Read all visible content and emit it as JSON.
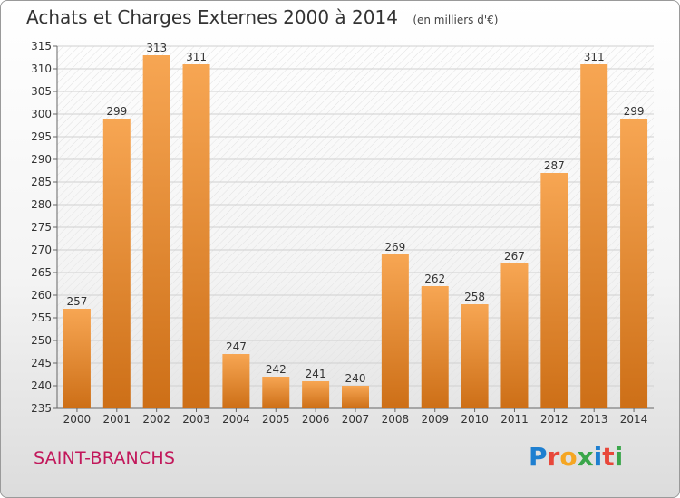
{
  "chart_data": {
    "type": "bar",
    "title": "Achats et Charges Externes 2000 à 2014",
    "subtitle": "(en milliers d'€)",
    "categories": [
      "2000",
      "2001",
      "2002",
      "2003",
      "2004",
      "2005",
      "2006",
      "2007",
      "2008",
      "2009",
      "2010",
      "2011",
      "2012",
      "2013",
      "2014"
    ],
    "values": [
      257,
      299,
      313,
      311,
      247,
      242,
      241,
      240,
      269,
      262,
      258,
      267,
      287,
      311,
      299
    ],
    "ylim": [
      235,
      315
    ],
    "yticks": [
      235,
      240,
      245,
      250,
      255,
      260,
      265,
      270,
      275,
      280,
      285,
      290,
      295,
      300,
      305,
      310,
      315
    ],
    "grid": true,
    "bar_color_top": "#f7a653",
    "bar_color_bottom": "#cd6f17"
  },
  "footer": {
    "city": "SAINT-BRANCHS",
    "logo_text": "Proxiti"
  }
}
